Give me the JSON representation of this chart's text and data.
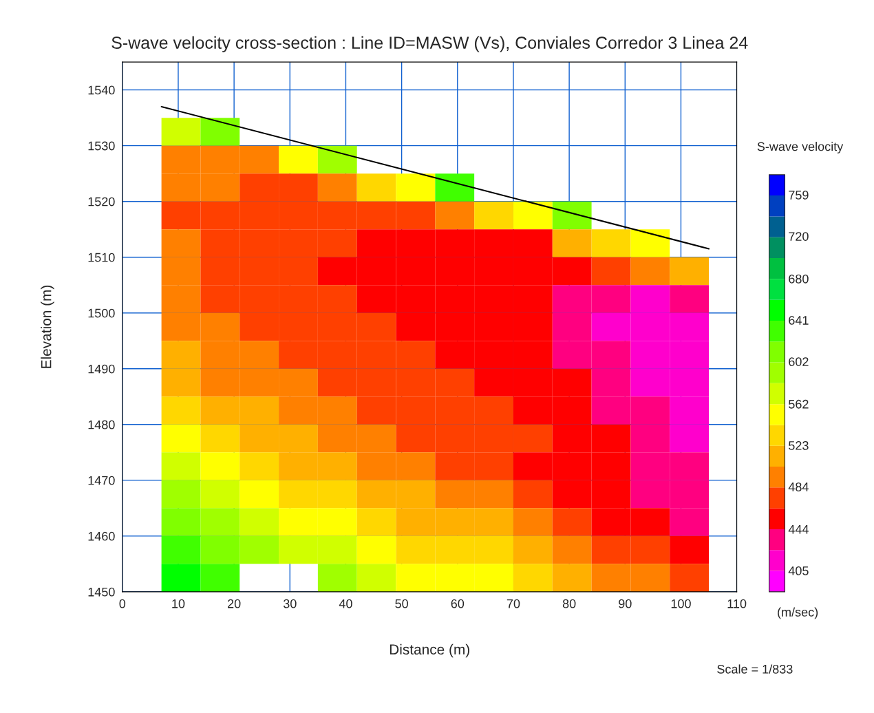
{
  "chart_data": {
    "type": "heatmap",
    "title": "S-wave velocity cross-section : Line ID=MASW (Vs), Conviales Corredor 3 Linea 24",
    "xlabel": "Distance (m)",
    "ylabel": "Elevation (m)",
    "clabel": "S-wave velocity",
    "annotations": [
      "(m/sec)",
      "Scale = 1/833"
    ],
    "x": [
      10.5,
      17.5,
      24.5,
      31.5,
      38.5,
      45.5,
      52.5,
      59.5,
      66.5,
      73.5,
      80.5,
      87.5,
      94.5,
      101.5
    ],
    "y": [
      1532.5,
      1527.5,
      1522.5,
      1517.5,
      1512.5,
      1507.5,
      1502.5,
      1497.5,
      1492.5,
      1487.5,
      1482.5,
      1477.5,
      1472.5,
      1467.5,
      1462.5,
      1457.5,
      1452.5
    ],
    "cells": [
      [
        562,
        612,
        null,
        null,
        null,
        null,
        null,
        null,
        null,
        null,
        null,
        null,
        null,
        null
      ],
      [
        494,
        494,
        494,
        552,
        592,
        null,
        null,
        null,
        null,
        null,
        null,
        null,
        null,
        null
      ],
      [
        494,
        494,
        474,
        474,
        494,
        533,
        552,
        631,
        null,
        null,
        null,
        null,
        null,
        null
      ],
      [
        474,
        474,
        474,
        474,
        474,
        474,
        474,
        494,
        533,
        552,
        612,
        null,
        null,
        null
      ],
      [
        494,
        474,
        474,
        474,
        474,
        454,
        454,
        454,
        454,
        454,
        513,
        533,
        552,
        null
      ],
      [
        494,
        474,
        474,
        474,
        454,
        454,
        454,
        454,
        454,
        454,
        454,
        474,
        494,
        513
      ],
      [
        494,
        474,
        474,
        474,
        474,
        454,
        454,
        454,
        454,
        454,
        435,
        435,
        415,
        435
      ],
      [
        494,
        494,
        474,
        474,
        474,
        474,
        454,
        454,
        454,
        454,
        435,
        415,
        415,
        415
      ],
      [
        513,
        494,
        494,
        474,
        474,
        474,
        474,
        454,
        454,
        454,
        435,
        435,
        415,
        415
      ],
      [
        513,
        494,
        494,
        494,
        474,
        474,
        474,
        474,
        454,
        454,
        454,
        435,
        415,
        415
      ],
      [
        533,
        513,
        513,
        494,
        494,
        474,
        474,
        474,
        474,
        454,
        454,
        435,
        435,
        415
      ],
      [
        552,
        533,
        513,
        513,
        494,
        494,
        474,
        474,
        474,
        474,
        454,
        454,
        435,
        415
      ],
      [
        572,
        552,
        533,
        513,
        513,
        494,
        494,
        474,
        474,
        454,
        454,
        454,
        435,
        435
      ],
      [
        592,
        572,
        552,
        533,
        533,
        513,
        513,
        494,
        494,
        474,
        454,
        454,
        435,
        435
      ],
      [
        612,
        592,
        572,
        552,
        552,
        533,
        513,
        513,
        513,
        494,
        474,
        454,
        454,
        435
      ],
      [
        631,
        612,
        592,
        572,
        572,
        552,
        533,
        533,
        533,
        513,
        494,
        474,
        474,
        454
      ],
      [
        651,
        631,
        null,
        null,
        592,
        572,
        552,
        552,
        552,
        533,
        513,
        494,
        494,
        474
      ]
    ],
    "colors": [
      "#ff00ff",
      "#ff00cc",
      "#ff0080",
      "#ff0000",
      "#ff4000",
      "#ff8000",
      "#ffb000",
      "#ffd700",
      "#ffff00",
      "#d0ff00",
      "#a0ff00",
      "#80ff00",
      "#40ff00",
      "#00ff00",
      "#00e040",
      "#00c040",
      "#009060",
      "#006090",
      "#0040c0",
      "#0000ff"
    ],
    "clim": [
      385,
      778
    ],
    "cticks": [
      405,
      444,
      484,
      523,
      562,
      602,
      641,
      680,
      720,
      759
    ],
    "series": [
      {
        "type": "line",
        "color": "#000000",
        "x": [
          7,
          105
        ],
        "values": [
          1537,
          1511.5
        ]
      }
    ],
    "xlim": [
      0,
      110
    ],
    "ylim": [
      1450,
      1545
    ],
    "xticks": [
      0,
      10,
      20,
      30,
      40,
      50,
      60,
      70,
      80,
      90,
      100,
      110
    ],
    "yticks": [
      1450,
      1460,
      1470,
      1480,
      1490,
      1500,
      1510,
      1520,
      1530,
      1540
    ],
    "grid": true
  }
}
